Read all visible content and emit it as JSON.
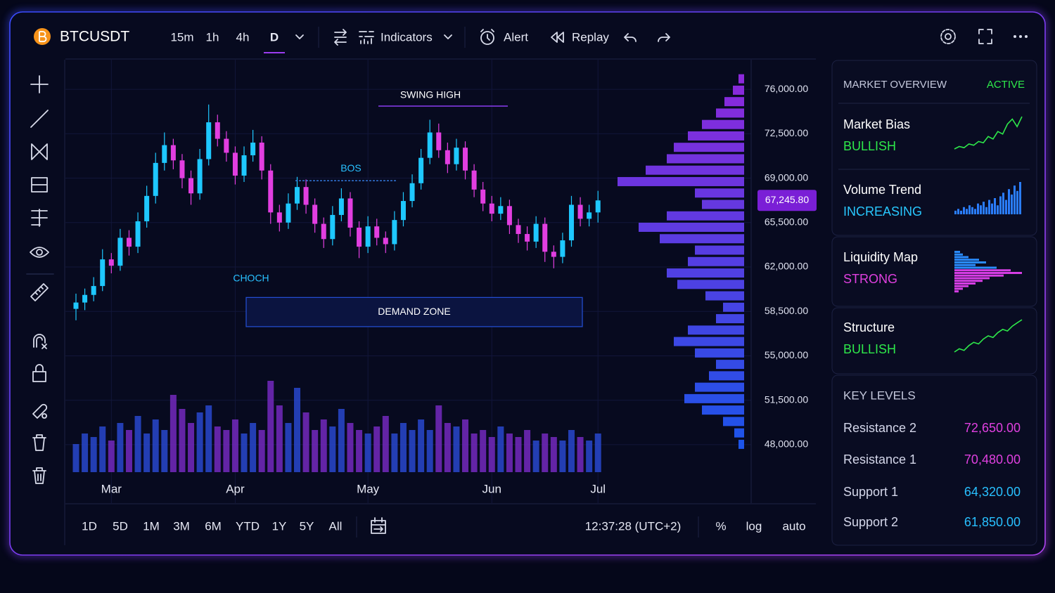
{
  "header": {
    "symbol": "BTCUSDT",
    "intervals": [
      "15m",
      "1h",
      "4h",
      "D"
    ],
    "active_interval": 3,
    "indicators": "Indicators",
    "alert": "Alert",
    "replay": "Replay"
  },
  "chart_data": {
    "type": "candlestick",
    "up_color": "#1ec8ff",
    "down_color": "#e23ee0",
    "candles": [
      [
        58700,
        59900,
        57800,
        59200
      ],
      [
        59200,
        60300,
        58600,
        59800
      ],
      [
        59800,
        61200,
        59300,
        60500
      ],
      [
        60500,
        63400,
        60100,
        62600
      ],
      [
        62600,
        63100,
        61500,
        62100
      ],
      [
        62100,
        65000,
        61700,
        64300
      ],
      [
        64300,
        64900,
        62900,
        63600
      ],
      [
        63600,
        66300,
        63100,
        65600
      ],
      [
        65600,
        68400,
        65100,
        67600
      ],
      [
        67600,
        71000,
        67000,
        70200
      ],
      [
        70200,
        72600,
        69600,
        71600
      ],
      [
        71600,
        72100,
        69700,
        70400
      ],
      [
        70400,
        70900,
        68200,
        69000
      ],
      [
        69000,
        69600,
        66900,
        67800
      ],
      [
        67800,
        71300,
        67300,
        70500
      ],
      [
        70500,
        74800,
        70000,
        73400
      ],
      [
        73400,
        74000,
        71500,
        72100
      ],
      [
        72100,
        72700,
        70300,
        71000
      ],
      [
        71000,
        71500,
        68500,
        69200
      ],
      [
        69200,
        71500,
        68700,
        70800
      ],
      [
        70800,
        72800,
        70300,
        71800
      ],
      [
        71800,
        72300,
        68900,
        69600
      ],
      [
        69600,
        70100,
        65400,
        66300
      ],
      [
        66300,
        66900,
        64800,
        65500
      ],
      [
        65500,
        67800,
        65000,
        67000
      ],
      [
        67000,
        69100,
        66500,
        68300
      ],
      [
        68300,
        68900,
        66200,
        66900
      ],
      [
        66900,
        67400,
        64700,
        65400
      ],
      [
        65400,
        65900,
        63500,
        64200
      ],
      [
        64200,
        66800,
        63700,
        66100
      ],
      [
        66100,
        68200,
        65600,
        67400
      ],
      [
        67400,
        67900,
        64400,
        65100
      ],
      [
        65100,
        65600,
        62700,
        63600
      ],
      [
        63600,
        66000,
        63100,
        65200
      ],
      [
        65200,
        65800,
        63700,
        64300
      ],
      [
        64300,
        64800,
        63100,
        63800
      ],
      [
        63800,
        66400,
        63300,
        65700
      ],
      [
        65700,
        67900,
        65200,
        67200
      ],
      [
        67200,
        69300,
        66700,
        68600
      ],
      [
        68600,
        71300,
        68100,
        70600
      ],
      [
        70600,
        73600,
        70100,
        72600
      ],
      [
        72600,
        73300,
        70600,
        71200
      ],
      [
        71200,
        71800,
        69400,
        70100
      ],
      [
        70100,
        72100,
        69600,
        71400
      ],
      [
        71400,
        71900,
        68900,
        69600
      ],
      [
        69600,
        70100,
        67500,
        68100
      ],
      [
        68100,
        68700,
        66400,
        67000
      ],
      [
        67000,
        67600,
        65600,
        66200
      ],
      [
        66200,
        67500,
        65700,
        66800
      ],
      [
        66800,
        67300,
        64600,
        65300
      ],
      [
        65300,
        65800,
        63900,
        64600
      ],
      [
        64600,
        65200,
        63300,
        64000
      ],
      [
        64000,
        66000,
        63500,
        65400
      ],
      [
        65400,
        65900,
        62400,
        63200
      ],
      [
        63200,
        63700,
        61900,
        62800
      ],
      [
        62800,
        64700,
        62300,
        64100
      ],
      [
        64100,
        67600,
        63600,
        66900
      ],
      [
        66900,
        67500,
        65200,
        65800
      ],
      [
        65800,
        66900,
        65200,
        66300
      ],
      [
        66300,
        68000,
        65500,
        67245.8
      ]
    ],
    "volumes": [
      40,
      55,
      50,
      65,
      45,
      70,
      60,
      80,
      55,
      75,
      60,
      110,
      90,
      70,
      85,
      95,
      65,
      60,
      75,
      55,
      70,
      60,
      130,
      95,
      70,
      120,
      85,
      60,
      75,
      65,
      90,
      70,
      60,
      55,
      65,
      80,
      55,
      70,
      60,
      75,
      60,
      95,
      70,
      65,
      75,
      55,
      60,
      50,
      65,
      55,
      50,
      60,
      45,
      55,
      50,
      45,
      60,
      50,
      45,
      55
    ],
    "ylim": [
      46500,
      77500
    ],
    "yticks": [
      {
        "value": 76000,
        "label": "76,000.00"
      },
      {
        "value": 72500,
        "label": "72,500.00"
      },
      {
        "value": 69000,
        "label": "69,000.00"
      },
      {
        "value": 65500,
        "label": "65,500.00"
      },
      {
        "value": 62000,
        "label": "62,000.00"
      },
      {
        "value": 58500,
        "label": "58,500.00"
      },
      {
        "value": 55000,
        "label": "55,000.00"
      },
      {
        "value": 51500,
        "label": "51,500.00"
      },
      {
        "value": 48000,
        "label": "48,000.00"
      }
    ],
    "current_price": {
      "value": 67245.8,
      "label": "67,245.80"
    },
    "xticks": [
      {
        "value": 4,
        "label": "Mar"
      },
      {
        "value": 18,
        "label": "Apr"
      },
      {
        "value": 33,
        "label": "May"
      },
      {
        "value": 47,
        "label": "Jun"
      },
      {
        "value": 59,
        "label": "Jul"
      }
    ],
    "profile_levels": [
      48000,
      48900,
      49800,
      50700,
      51600,
      52500,
      53400,
      54300,
      55200,
      56100,
      57000,
      57900,
      58800,
      59700,
      60600,
      61500,
      62400,
      63300,
      64200,
      65100,
      66000,
      66900,
      67800,
      68700,
      69600,
      70500,
      71400,
      72300,
      73200,
      74100,
      75000,
      75900,
      76800
    ],
    "profile_volumes": [
      8,
      14,
      30,
      60,
      85,
      70,
      50,
      40,
      70,
      100,
      80,
      40,
      30,
      55,
      95,
      110,
      80,
      70,
      120,
      150,
      110,
      60,
      70,
      180,
      140,
      110,
      100,
      80,
      60,
      40,
      28,
      16,
      8
    ],
    "profile_colors": [
      "#1f5cff",
      "#9b2cf0"
    ],
    "annotations": {
      "swing_high": "SWING HIGH",
      "bos": {
        "label": "BOS",
        "value": 68800
      },
      "choch": "CHOCH",
      "demand_zone": {
        "label": "DEMAND ZONE",
        "top": 59600,
        "bottom": 57300
      }
    }
  },
  "footer": {
    "ranges": [
      "1D",
      "5D",
      "1M",
      "3M",
      "6M",
      "YTD",
      "1Y",
      "5Y",
      "All"
    ],
    "time": "12:37:28 (UTC+2)",
    "options": [
      "%",
      "log",
      "auto"
    ]
  },
  "panel": {
    "overview_title": "MARKET OVERVIEW",
    "status": "ACTIVE",
    "cards": [
      {
        "title": "Market Bias",
        "status": "BULLISH",
        "type": "line",
        "color": "#2ee84a",
        "values": [
          3,
          4,
          3.5,
          5,
          4.5,
          6,
          5.5,
          8,
          7,
          10,
          9,
          13,
          15,
          12,
          16
        ]
      },
      {
        "title": "Volume Trend",
        "status": "INCREASING",
        "type": "bar",
        "color": "#2a7dff",
        "values": [
          2,
          3,
          2,
          4,
          3,
          5,
          4,
          3,
          6,
          5,
          7,
          4,
          8,
          6,
          9,
          5,
          10,
          12,
          8,
          14,
          11,
          16,
          13,
          18
        ]
      },
      {
        "title": "Liquidity Map",
        "status": "STRONG",
        "type": "hbar",
        "color": "#d83ee6",
        "values": [
          8,
          12,
          20,
          35,
          45,
          30,
          60,
          80,
          96,
          70,
          50,
          40,
          30,
          20,
          12,
          6
        ]
      },
      {
        "title": "Structure",
        "status": "BULLISH",
        "type": "line",
        "color": "#2ee84a",
        "values": [
          2,
          3,
          2.5,
          4,
          5,
          4.5,
          6,
          7,
          6.5,
          8,
          9,
          8.5,
          10,
          11,
          12
        ]
      }
    ],
    "key_levels_title": "KEY LEVELS",
    "key_levels": [
      [
        "Resistance 2",
        "72,650.00"
      ],
      [
        "Resistance 1",
        "70,480.00"
      ],
      [
        "Support 1",
        "64,320.00"
      ],
      [
        "Support 2",
        "61,850.00"
      ]
    ]
  }
}
